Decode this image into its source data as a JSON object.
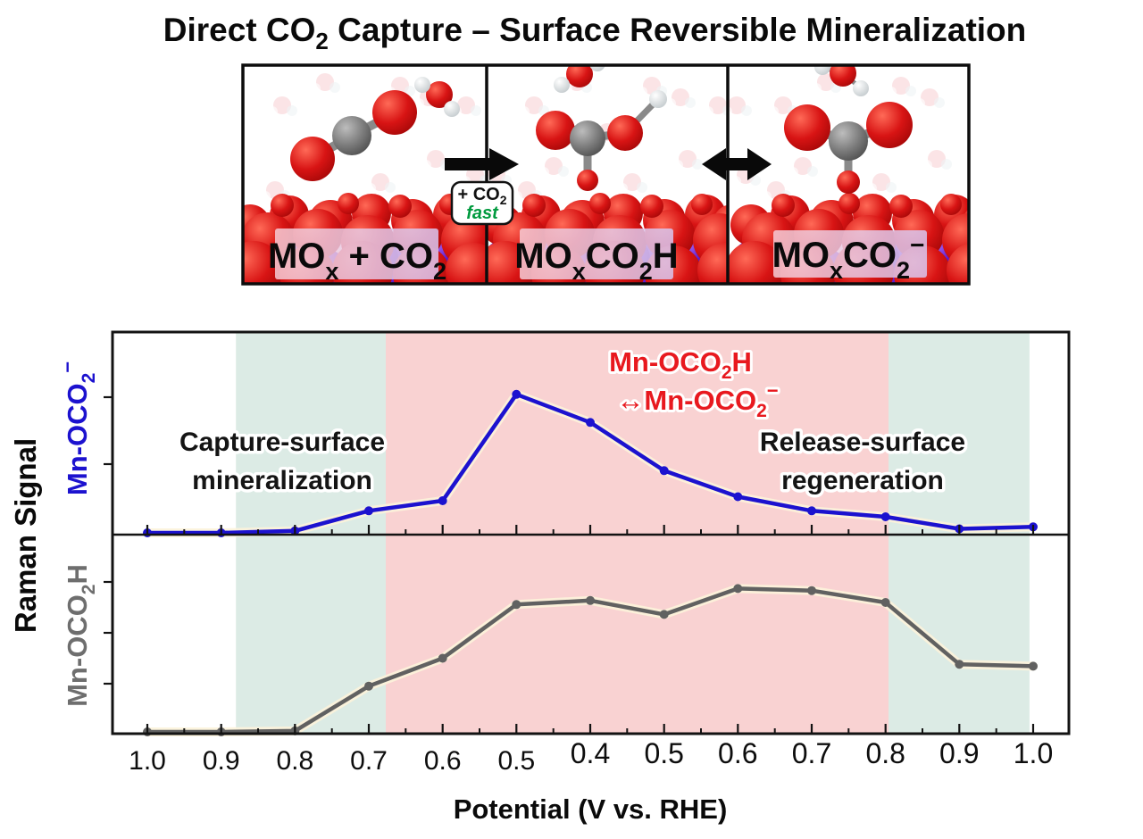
{
  "title": {
    "part1": "Direct CO",
    "sub": "2",
    "part2": " Capture – Surface Reversible Mineralization"
  },
  "scheme": {
    "panels": [
      {
        "label": {
          "p1": "MO",
          "sub1": "x",
          "p2": " + CO",
          "sub2": "2"
        }
      },
      {
        "label": {
          "p1": "MO",
          "sub1": "x",
          "p2": "CO",
          "sub2": "2",
          "p3": "H"
        }
      },
      {
        "label": {
          "p1": "MO",
          "sub1": "x",
          "p2": "CO",
          "sub2": "2",
          "sup": "−"
        }
      }
    ],
    "rate_box": {
      "line1": "+ CO",
      "line1_sub": "2",
      "line2": "fast",
      "line2_color": "#009a3e"
    }
  },
  "chart": {
    "ylabel": "Raman Signal",
    "series_label_top": {
      "p1": "Mn-OCO",
      "sub": "2",
      "sup": "−",
      "color": "#1c12cf"
    },
    "series_label_bottom": {
      "p1": "Mn-OCO",
      "sub": "2",
      "p3": "H",
      "color": "#6e6e6e"
    },
    "xlabel": "Potential (V vs. RHE)",
    "annotations": {
      "capture_line1": "Capture-surface",
      "capture_line2": "mineralization",
      "release_line1": "Release-surface",
      "release_line2": "regeneration",
      "equilibrium_line1": {
        "p1": "Mn-OCO",
        "sub": "2",
        "p3": "H"
      },
      "equilibrium_line2": {
        "arrow": "↔",
        "p1": "Mn-OCO",
        "sub": "2",
        "sup": "−"
      },
      "equilibrium_color": "#e8191f"
    }
  },
  "chart_data": {
    "type": "line",
    "x_tick_labels": [
      "1.0",
      "0.9",
      "0.8",
      "0.7",
      "0.6",
      "0.5",
      "0.4",
      "0.5",
      "0.6",
      "0.7",
      "0.8",
      "0.9",
      "1.0"
    ],
    "x_axis_note": "potential swept 1.0 → 0.4 → 1.0 V vs. RHE (forward then return)",
    "xlabel": "Potential (V vs. RHE)",
    "ylabel": "Raman Signal (relative intensity, axis unlabeled)",
    "ylim": [
      0,
      1
    ],
    "grid": false,
    "legend": false,
    "series": [
      {
        "name": "Mn-OCO2− (blue, top panel)",
        "color": "#1c12cf",
        "marker": "circle",
        "values": [
          0,
          0,
          0.01,
          0.11,
          0.16,
          0.69,
          0.55,
          0.31,
          0.18,
          0.11,
          0.08,
          0.02,
          0.03
        ]
      },
      {
        "name": "Mn-OCO2H (gray, bottom panel)",
        "color": "#616161",
        "marker": "circle",
        "values": [
          0,
          0,
          0.005,
          0.23,
          0.37,
          0.64,
          0.66,
          0.59,
          0.72,
          0.71,
          0.65,
          0.34,
          0.33
        ]
      }
    ],
    "bands": [
      {
        "name": "capture-surface mineralization (teal)",
        "color": "#dcebe5",
        "from_tick": 1.2,
        "to_tick": 3.23
      },
      {
        "name": "Mn-OCO2H ↔ Mn-OCO2− conversion (pink)",
        "color": "#f9d2d2",
        "from_tick": 3.23,
        "to_tick": 10.04
      },
      {
        "name": "release-surface regeneration (teal)",
        "color": "#dcebe5",
        "from_tick": 10.04,
        "to_tick": 11.95
      }
    ]
  }
}
